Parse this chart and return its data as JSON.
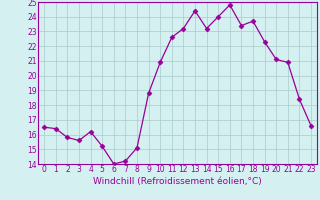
{
  "x": [
    0,
    1,
    2,
    3,
    4,
    5,
    6,
    7,
    8,
    9,
    10,
    11,
    12,
    13,
    14,
    15,
    16,
    17,
    18,
    19,
    20,
    21,
    22,
    23
  ],
  "y": [
    16.5,
    16.4,
    15.8,
    15.6,
    16.2,
    15.2,
    14.0,
    14.2,
    15.1,
    18.8,
    20.9,
    22.6,
    23.2,
    24.4,
    23.2,
    24.0,
    24.8,
    23.4,
    23.7,
    22.3,
    21.1,
    20.9,
    18.4,
    16.6
  ],
  "line_color": "#990099",
  "marker": "D",
  "marker_size": 2.5,
  "bg_color": "#d4f0f0",
  "grid_color": "#aacccc",
  "xlabel": "Windchill (Refroidissement éolien,°C)",
  "xlim": [
    -0.5,
    23.5
  ],
  "ylim": [
    14,
    25
  ],
  "yticks": [
    14,
    15,
    16,
    17,
    18,
    19,
    20,
    21,
    22,
    23,
    24,
    25
  ],
  "xticks": [
    0,
    1,
    2,
    3,
    4,
    5,
    6,
    7,
    8,
    9,
    10,
    11,
    12,
    13,
    14,
    15,
    16,
    17,
    18,
    19,
    20,
    21,
    22,
    23
  ],
  "tick_label_fontsize": 5.5,
  "xlabel_fontsize": 6.5
}
